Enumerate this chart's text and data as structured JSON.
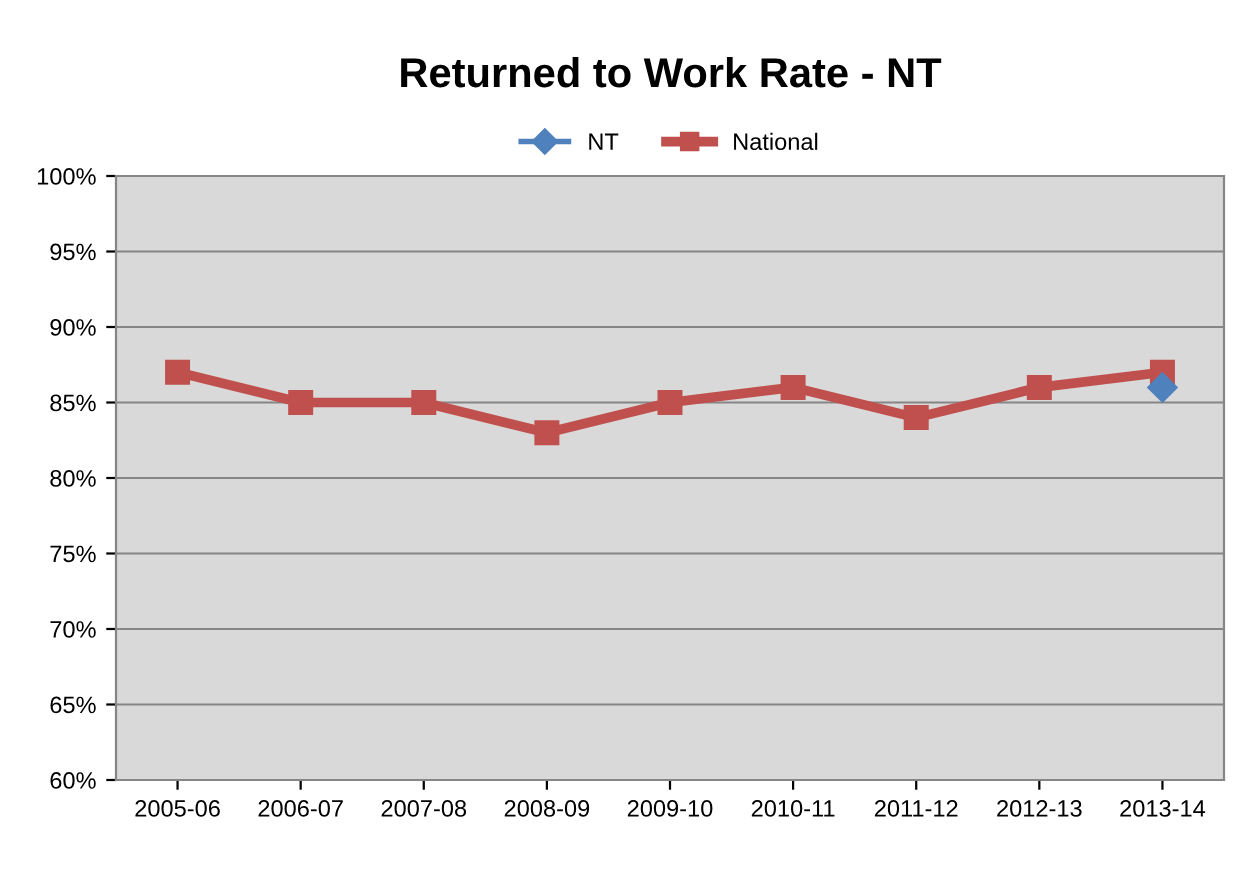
{
  "chart_data": {
    "type": "line",
    "title": "Returned to Work Rate - NT",
    "categories": [
      "2005-06",
      "2006-07",
      "2007-08",
      "2008-09",
      "2009-10",
      "2010-11",
      "2011-12",
      "2012-13",
      "2013-14"
    ],
    "series": [
      {
        "name": "NT",
        "color": "#4f81bd",
        "marker": "diamond",
        "values": [
          null,
          null,
          null,
          null,
          null,
          null,
          null,
          null,
          86
        ]
      },
      {
        "name": "National",
        "color": "#c0504d",
        "marker": "square",
        "values": [
          87,
          85,
          85,
          83,
          85,
          86,
          84,
          86,
          87
        ]
      }
    ],
    "ylim": [
      60,
      100
    ],
    "yticks": [
      {
        "value": 60,
        "label": "60%"
      },
      {
        "value": 65,
        "label": "65%"
      },
      {
        "value": 70,
        "label": "70%"
      },
      {
        "value": 75,
        "label": "75%"
      },
      {
        "value": 80,
        "label": "80%"
      },
      {
        "value": 85,
        "label": "85%"
      },
      {
        "value": 90,
        "label": "90%"
      },
      {
        "value": 95,
        "label": "95%"
      },
      {
        "value": 100,
        "label": "100%"
      }
    ],
    "grid": "y",
    "legend": "top",
    "line_style": "solid"
  }
}
